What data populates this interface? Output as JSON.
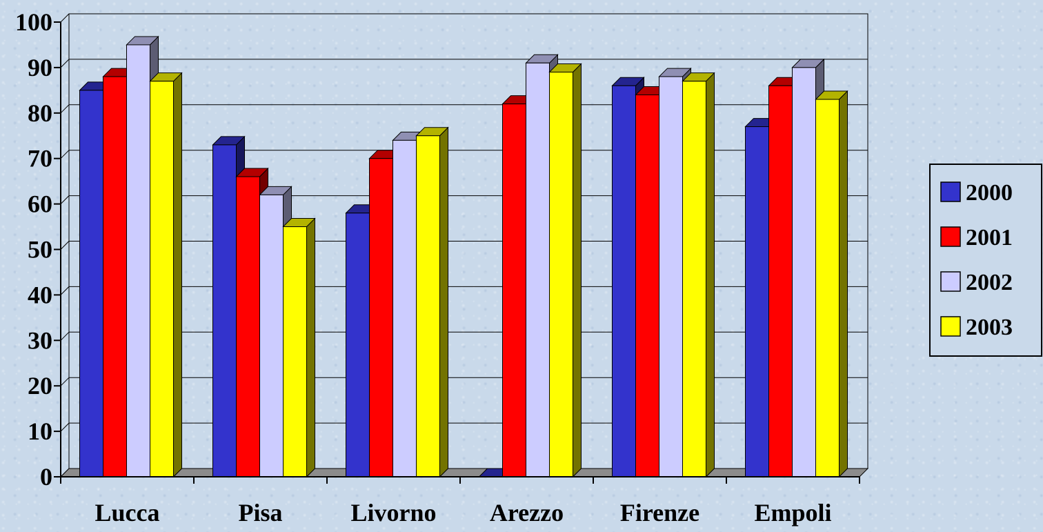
{
  "chart_data": {
    "type": "bar",
    "style": "3d-clustered-column",
    "categories": [
      "Lucca",
      "Pisa",
      "Livorno",
      "Arezzo",
      "Firenze",
      "Empoli"
    ],
    "series": [
      {
        "name": "2000",
        "color": "#3333cc",
        "values": [
          85,
          73,
          58,
          0,
          86,
          77
        ]
      },
      {
        "name": "2001",
        "color": "#ff0000",
        "values": [
          88,
          66,
          70,
          82,
          84,
          86
        ]
      },
      {
        "name": "2002",
        "color": "#ccccff",
        "values": [
          95,
          62,
          74,
          91,
          88,
          90
        ]
      },
      {
        "name": "2003",
        "color": "#ffff00",
        "values": [
          87,
          55,
          75,
          89,
          87,
          83
        ]
      }
    ],
    "yticks": [
      "0",
      "10",
      "20",
      "30",
      "40",
      "50",
      "60",
      "70",
      "80",
      "90",
      "100"
    ],
    "ylim": [
      0,
      100
    ],
    "grid": true,
    "legend_position": "right",
    "title": "",
    "xlabel": "",
    "ylabel": ""
  }
}
